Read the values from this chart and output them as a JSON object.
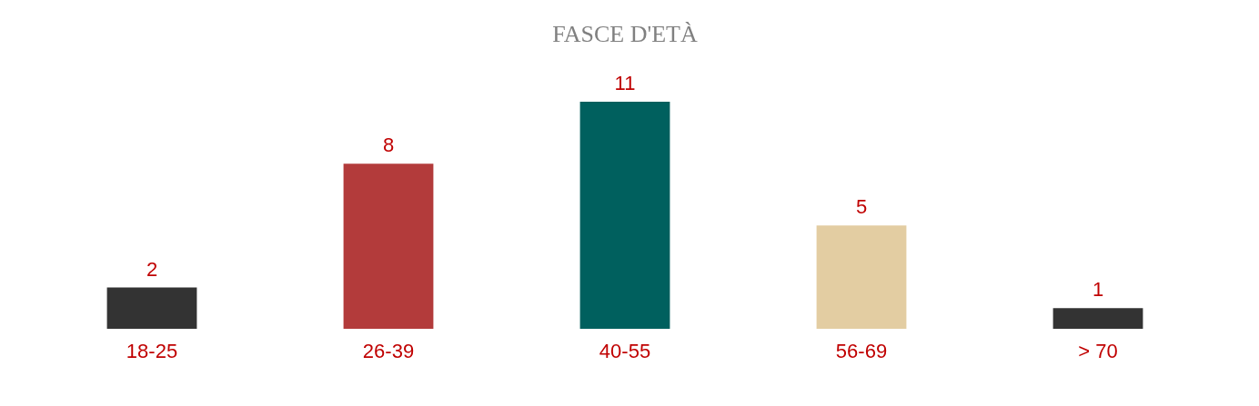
{
  "chart_data": {
    "type": "bar",
    "title": "FASCE D'ETÀ",
    "categories": [
      "18-25",
      "26-39",
      "40-55",
      "56-69",
      "> 70"
    ],
    "values": [
      2,
      8,
      11,
      5,
      1
    ],
    "colors": [
      "#333333",
      "#b33b3b",
      "#00605e",
      "#e3cda2",
      "#333333"
    ],
    "data_labels": true
  }
}
